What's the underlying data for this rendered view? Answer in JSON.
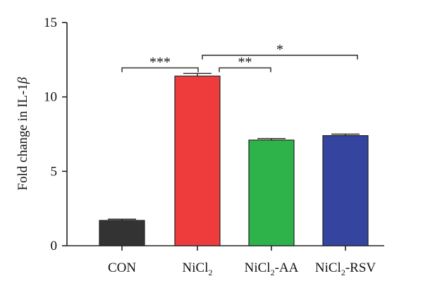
{
  "chart_data": {
    "type": "bar",
    "ylabel": "Fold change in IL-1",
    "ylabel_symbol": "β",
    "ylim": [
      0,
      15
    ],
    "yticks": [
      "0",
      "5",
      "10",
      "15"
    ],
    "categories": [
      {
        "base": "CON",
        "sub": "",
        "suffix": ""
      },
      {
        "base": "NiCl",
        "sub": "2",
        "suffix": ""
      },
      {
        "base": "NiCl",
        "sub": "2",
        "suffix": "-AA"
      },
      {
        "base": "NiCl",
        "sub": "2",
        "suffix": "-RSV"
      }
    ],
    "values": [
      1.7,
      11.4,
      7.1,
      7.4
    ],
    "errors": [
      0.08,
      0.18,
      0.1,
      0.1
    ],
    "colors": [
      "#333333",
      "#ee3b3b",
      "#2eb24a",
      "#35449e"
    ],
    "significance": [
      {
        "from": 0,
        "to": 1,
        "label": "***",
        "level": 11.95
      },
      {
        "from": 1,
        "to": 2,
        "label": "**",
        "level": 11.95
      },
      {
        "from": 1,
        "to": 3,
        "label": "*",
        "level": 12.8
      }
    ]
  }
}
